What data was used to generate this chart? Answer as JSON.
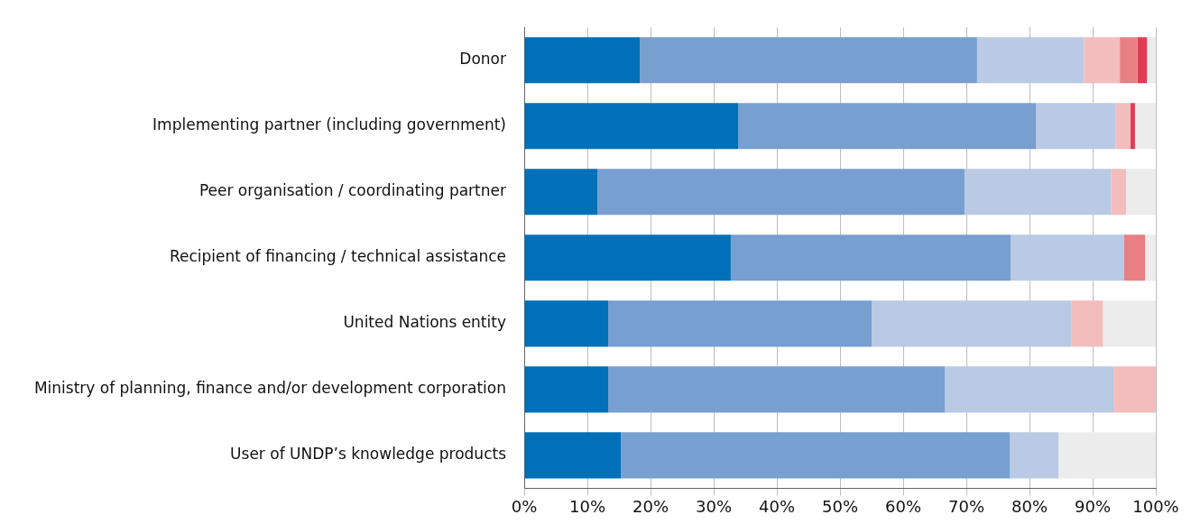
{
  "chart_data": {
    "type": "bar",
    "orientation": "horizontal",
    "stacked": true,
    "categories": [
      "Donor",
      "Implementing partner (including government)",
      "Peer organisation / coordinating partner",
      "Recipient of financing / technical assistance",
      "United Nations entity",
      "Ministry of planning, finance and/or development corporation",
      "User of UNDP’s knowledge products"
    ],
    "series": [
      {
        "color": "#0070b8",
        "values": [
          18.3,
          33.9,
          11.6,
          32.7,
          13.3,
          13.3,
          15.3
        ]
      },
      {
        "color": "#779fd0",
        "values": [
          53.4,
          47.1,
          58.1,
          44.3,
          41.7,
          53.3,
          61.6
        ]
      },
      {
        "color": "#bacae4",
        "values": [
          16.9,
          12.6,
          23.2,
          18.0,
          31.6,
          26.7,
          7.7
        ]
      },
      {
        "color": "#f4bdbd",
        "values": [
          5.7,
          2.4,
          2.4,
          null,
          5.0,
          6.7,
          null
        ]
      },
      {
        "color": "#e88083",
        "values": [
          2.8,
          null,
          null,
          3.3,
          null,
          null,
          null
        ]
      },
      {
        "color": "#e03c56",
        "values": [
          1.5,
          0.7,
          null,
          null,
          null,
          null,
          null
        ]
      },
      {
        "color": "#ececec",
        "values": [
          1.4,
          3.3,
          4.7,
          1.7,
          8.4,
          null,
          15.4
        ]
      }
    ],
    "xlim": [
      0,
      100
    ],
    "xticks": [
      {
        "value": 0,
        "label": "0%"
      },
      {
        "value": 10,
        "label": "10%"
      },
      {
        "value": 20,
        "label": "20%"
      },
      {
        "value": 30,
        "label": "30%"
      },
      {
        "value": 40,
        "label": "40%"
      },
      {
        "value": 50,
        "label": "50%"
      },
      {
        "value": 60,
        "label": "60%"
      },
      {
        "value": 70,
        "label": "70%"
      },
      {
        "value": 80,
        "label": "80%"
      },
      {
        "value": 90,
        "label": "90%"
      },
      {
        "value": 100,
        "label": "100%"
      }
    ],
    "grid": "x",
    "legend": false
  }
}
